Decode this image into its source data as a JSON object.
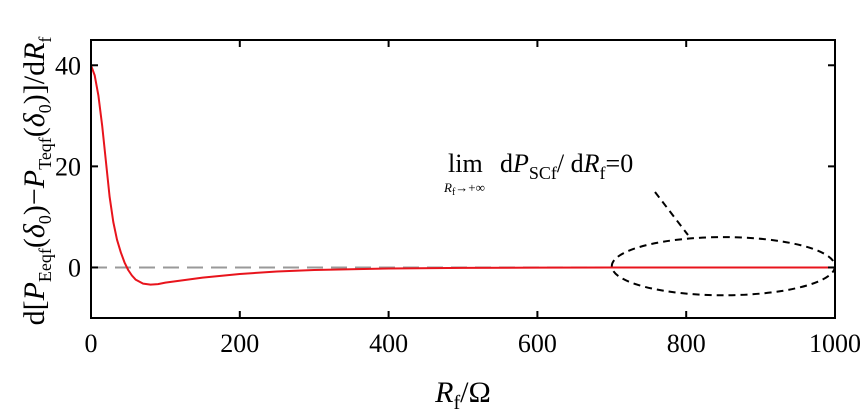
{
  "chart_data": {
    "type": "line",
    "xlabel": {
      "main": "R",
      "sub": "f",
      "unit": "/Ω"
    },
    "ylabel": {
      "parts": [
        {
          "t": "d[",
          "i": false
        },
        {
          "t": "P",
          "i": true
        },
        {
          "t": "Eeqf",
          "s": true
        },
        {
          "t": "(",
          "i": false
        },
        {
          "t": "δ",
          "i": true
        },
        {
          "t": "0",
          "s": true
        },
        {
          "t": ")−",
          "i": false
        },
        {
          "t": "P",
          "i": true
        },
        {
          "t": "Teqf",
          "s": true
        },
        {
          "t": "(",
          "i": false
        },
        {
          "t": "δ",
          "i": true
        },
        {
          "t": "0",
          "s": true
        },
        {
          "t": ")]/d",
          "i": false
        },
        {
          "t": "R",
          "i": true
        },
        {
          "t": "f",
          "s": true
        }
      ]
    },
    "xlim": [
      0,
      1000
    ],
    "ylim": [
      -10,
      45
    ],
    "xticks": [
      0,
      200,
      400,
      600,
      800,
      1000
    ],
    "yticks": [
      0,
      20,
      40
    ],
    "grid": false,
    "series": [
      {
        "color": "#e8141c",
        "x": [
          0,
          5,
          10,
          15,
          20,
          25,
          30,
          35,
          40,
          45,
          50,
          55,
          60,
          70,
          80,
          90,
          100,
          120,
          150,
          200,
          250,
          300,
          400,
          500,
          600,
          700,
          800,
          900,
          1000
        ],
        "y": [
          40,
          38,
          34,
          28,
          21,
          14,
          9,
          5.5,
          3,
          1,
          -0.5,
          -1.6,
          -2.4,
          -3.2,
          -3.4,
          -3.3,
          -3.0,
          -2.6,
          -2.0,
          -1.3,
          -0.8,
          -0.5,
          -0.2,
          -0.08,
          -0.03,
          -0.01,
          0,
          0,
          0
        ]
      }
    ],
    "reference_lines": [
      {
        "y": 0,
        "color": "#999999",
        "style": "dashed"
      }
    ],
    "annotation": {
      "lim": "lim",
      "lim_sub": "R",
      "lim_sub2": "f",
      "lim_sub3": "→+∞",
      "expr_d": "d",
      "expr_P": "P",
      "expr_sub": "SCf",
      "expr_slash": "/ d",
      "expr_R": "R",
      "expr_sub2": "f",
      "expr_eq": "=0",
      "ellipse_x": [
        700,
        1000
      ],
      "ellipse_y": [
        -5.5,
        6
      ]
    }
  }
}
